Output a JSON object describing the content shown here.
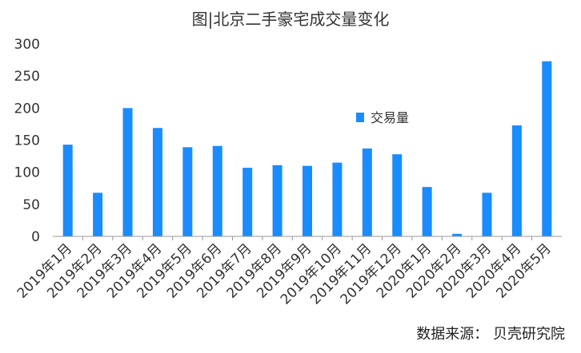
{
  "title": "图|北京二手豪宅成交量变化",
  "source": "数据来源： 贝壳研究院",
  "colors": {
    "bar": "#1a8cff",
    "axis": "#999999",
    "text": "#333333"
  },
  "chart_data": {
    "type": "bar",
    "categories": [
      "2019年1月",
      "2019年2月",
      "2019年3月",
      "2019年4月",
      "2019年5月",
      "2019年6月",
      "2019年7月",
      "2019年8月",
      "2019年9月",
      "2019年10月",
      "2019年11月",
      "2019年12月",
      "2020年1月",
      "2020年2月",
      "2020年3月",
      "2020年4月",
      "2020年5月"
    ],
    "series": [
      {
        "name": "交易量",
        "values": [
          143,
          68,
          200,
          169,
          139,
          141,
          107,
          111,
          110,
          115,
          137,
          128,
          77,
          4,
          68,
          173,
          273
        ]
      }
    ],
    "ylim": [
      0,
      300
    ],
    "yticks": [
      0,
      50,
      100,
      150,
      200,
      250,
      300
    ],
    "grid": false,
    "legend": "top-center-right"
  }
}
